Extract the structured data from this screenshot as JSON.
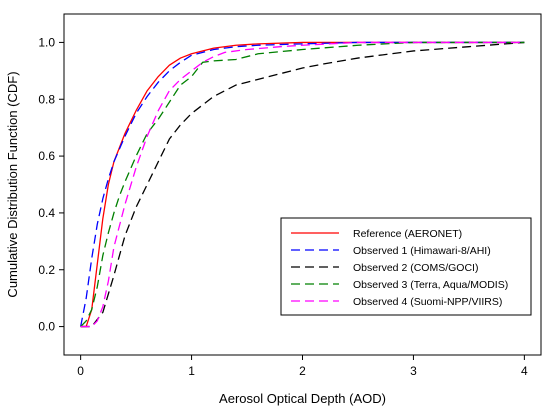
{
  "chart_data": {
    "type": "line",
    "xlabel": "Aerosol Optical Depth (AOD)",
    "ylabel": "Cumulative Distribution Function (CDF)",
    "xlim": [
      -0.15,
      4.15
    ],
    "ylim": [
      -0.1,
      1.1
    ],
    "xticks": [
      0,
      1,
      2,
      3,
      4
    ],
    "yticks": [
      0.0,
      0.2,
      0.4,
      0.6,
      0.8,
      1.0
    ],
    "xtick_labels": [
      "0",
      "1",
      "2",
      "3",
      "4"
    ],
    "ytick_labels": [
      "0.0",
      "0.2",
      "0.4",
      "0.6",
      "0.8",
      "1.0"
    ],
    "grid": false,
    "legend_position": "lower-right",
    "series": [
      {
        "name": "Reference (AERONET)",
        "color": "#ff0000",
        "dash": "solid",
        "x": [
          0.0,
          0.05,
          0.1,
          0.15,
          0.2,
          0.25,
          0.3,
          0.4,
          0.5,
          0.6,
          0.7,
          0.8,
          0.9,
          1.0,
          1.2,
          1.4,
          1.6,
          2.0,
          2.5,
          3.0,
          4.0
        ],
        "y": [
          0.0,
          0.0,
          0.06,
          0.22,
          0.38,
          0.5,
          0.58,
          0.68,
          0.76,
          0.83,
          0.88,
          0.92,
          0.945,
          0.96,
          0.98,
          0.99,
          0.995,
          1.0,
          1.0,
          1.0,
          1.0
        ]
      },
      {
        "name": "Observed 1 (Himawari-8/AHI)",
        "color": "#0000ff",
        "dash": "long",
        "x": [
          0.0,
          0.05,
          0.1,
          0.15,
          0.2,
          0.25,
          0.3,
          0.4,
          0.5,
          0.6,
          0.7,
          0.8,
          0.9,
          1.0,
          1.2,
          1.4,
          1.6,
          2.0,
          2.5,
          3.0,
          4.0
        ],
        "y": [
          0.0,
          0.1,
          0.24,
          0.36,
          0.45,
          0.52,
          0.58,
          0.67,
          0.75,
          0.81,
          0.86,
          0.9,
          0.93,
          0.955,
          0.975,
          0.985,
          0.99,
          0.995,
          1.0,
          1.0,
          1.0
        ]
      },
      {
        "name": "Observed 2 (COMS/GOCI)",
        "color": "#000000",
        "dash": "long",
        "x": [
          0.0,
          0.1,
          0.2,
          0.3,
          0.4,
          0.5,
          0.6,
          0.7,
          0.8,
          0.9,
          1.0,
          1.1,
          1.2,
          1.3,
          1.4,
          1.5,
          1.6,
          1.8,
          2.0,
          2.2,
          2.5,
          2.8,
          3.0,
          3.5,
          4.0
        ],
        "y": [
          0.0,
          0.0,
          0.05,
          0.18,
          0.32,
          0.42,
          0.5,
          0.58,
          0.66,
          0.71,
          0.75,
          0.78,
          0.81,
          0.83,
          0.85,
          0.86,
          0.87,
          0.89,
          0.91,
          0.925,
          0.945,
          0.96,
          0.97,
          0.985,
          1.0
        ]
      },
      {
        "name": "Observed 3 (Terra, Aqua/MODIS)",
        "color": "#008000",
        "dash": "long",
        "x": [
          0.0,
          0.05,
          0.1,
          0.15,
          0.2,
          0.25,
          0.3,
          0.35,
          0.4,
          0.5,
          0.6,
          0.7,
          0.8,
          0.9,
          1.0,
          1.1,
          1.2,
          1.4,
          1.6,
          2.0,
          2.5,
          3.0,
          4.0
        ],
        "y": [
          0.0,
          0.02,
          0.06,
          0.14,
          0.25,
          0.33,
          0.4,
          0.46,
          0.51,
          0.6,
          0.68,
          0.73,
          0.79,
          0.85,
          0.88,
          0.93,
          0.935,
          0.94,
          0.96,
          0.975,
          0.99,
          1.0,
          1.0
        ]
      },
      {
        "name": "Observed 4 (Suomi-NPP/VIIRS)",
        "color": "#ff00ff",
        "dash": "long",
        "x": [
          0.0,
          0.1,
          0.15,
          0.2,
          0.25,
          0.3,
          0.4,
          0.5,
          0.6,
          0.7,
          0.8,
          0.9,
          1.0,
          1.1,
          1.2,
          1.3,
          1.5,
          1.8,
          2.0,
          2.5,
          3.0,
          4.0
        ],
        "y": [
          0.0,
          0.0,
          0.02,
          0.07,
          0.16,
          0.28,
          0.43,
          0.56,
          0.67,
          0.76,
          0.83,
          0.87,
          0.9,
          0.93,
          0.95,
          0.965,
          0.975,
          0.985,
          0.99,
          1.0,
          1.0,
          1.0
        ]
      }
    ]
  }
}
